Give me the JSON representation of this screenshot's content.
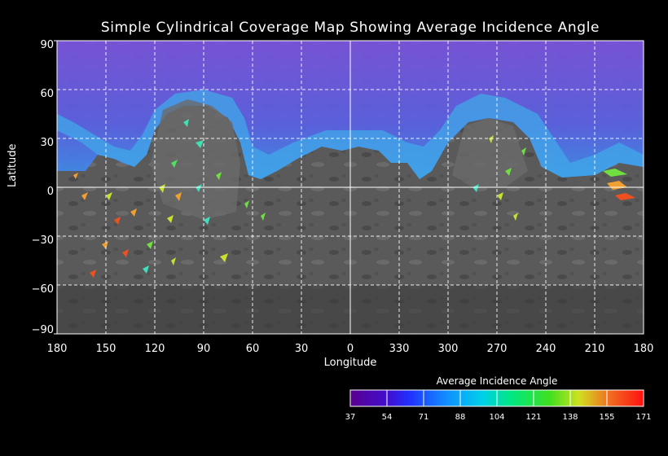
{
  "title": "Simple Cylindrical Coverage Map Showing Average Incidence Angle",
  "map": {
    "projection": "simple cylindrical",
    "ylabel": "Latitude",
    "xlabel": "Longitude",
    "lat_ticks": [
      "90",
      "60",
      "30",
      "0",
      "−30",
      "−60",
      "−90"
    ],
    "lon_ticks": [
      "180",
      "150",
      "120",
      "90",
      "60",
      "30",
      "0",
      "330",
      "300",
      "270",
      "240",
      "210",
      "180"
    ],
    "grid": "dashed white every 30 degrees",
    "background": "grey planetary basemap",
    "overlay_colors": {
      "high_latitude_band": "#8a5cf0",
      "edge_band": "#4ea6f0",
      "scattered_facets": [
        "#40e0c0",
        "#70e040",
        "#c8e030",
        "#f0a030",
        "#f05020"
      ]
    }
  },
  "colorbar": {
    "title": "Average Incidence Angle",
    "tick_labels": [
      "37",
      "54",
      "71",
      "88",
      "104",
      "121",
      "138",
      "155",
      "171"
    ],
    "colors": [
      "#6a00a8",
      "#3030ff",
      "#1080ff",
      "#00c0f0",
      "#00e890",
      "#20e020",
      "#c0e020",
      "#f08020",
      "#ff1010"
    ]
  }
}
